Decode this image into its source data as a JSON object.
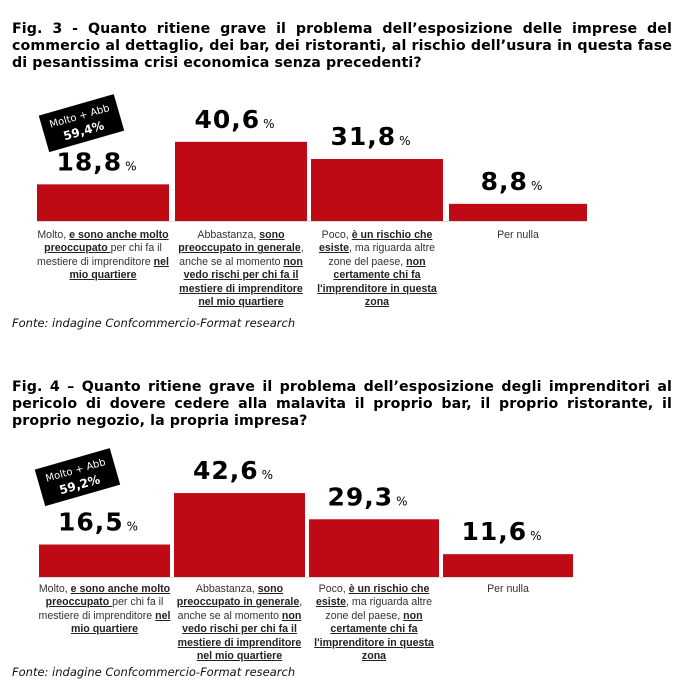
{
  "colors": {
    "bar": "#bf0a16",
    "badge": "#000000",
    "badge_text": "#ffffff"
  },
  "chart_data": [
    {
      "type": "bar",
      "title": "Fig. 3 - Quanto ritiene grave il problema dell’esposizione delle imprese del commercio al dettaglio, dei bar, dei ristoranti, al rischio dell’usura in questa fase di pesantissima crisi economica senza precedenti?",
      "unit": "%",
      "values": [
        18.8,
        40.6,
        31.8,
        8.8
      ],
      "value_labels": [
        "18,8",
        "40,6",
        "31,8",
        "8,8"
      ],
      "badge": {
        "line1": "Molto + Abb",
        "line2": "59,4%"
      },
      "categories": [
        [
          {
            "t": "Molto, ",
            "b": false
          },
          {
            "t": "e sono anche molto preoccupato ",
            "b": true
          },
          {
            "t": "per chi fa il mestiere di imprenditore ",
            "b": false
          },
          {
            "t": "nel mio quartiere",
            "b": true
          }
        ],
        [
          {
            "t": "Abbastanza, ",
            "b": false
          },
          {
            "t": "sono preoccupato in generale",
            "b": true
          },
          {
            "t": ", anche se al momento ",
            "b": false
          },
          {
            "t": "non vedo rischi per chi fa il mestiere di imprenditore nel mio quartiere",
            "b": true
          }
        ],
        [
          {
            "t": "Poco, ",
            "b": false
          },
          {
            "t": "è un rischio che esiste",
            "b": true
          },
          {
            "t": ", ma riguarda altre zone del paese, ",
            "b": false
          },
          {
            "t": "non certamente chi fa l'imprenditore in questa zona",
            "b": true
          }
        ],
        [
          {
            "t": "Per nulla",
            "b": false
          }
        ]
      ],
      "source": "Fonte: indagine Confcommercio-Format research"
    },
    {
      "type": "bar",
      "title": "Fig. 4 – Quanto ritiene grave il problema dell’esposizione degli imprenditori al pericolo di dovere cedere alla malavita il proprio bar, il proprio ristorante, il proprio negozio, la propria impresa?",
      "unit": "%",
      "values": [
        16.5,
        42.6,
        29.3,
        11.6
      ],
      "value_labels": [
        "16,5",
        "42,6",
        "29,3",
        "11,6"
      ],
      "badge": {
        "line1": "Molto + Abb",
        "line2": "59,2%"
      },
      "categories": [
        [
          {
            "t": "Molto, ",
            "b": false
          },
          {
            "t": "e sono anche molto preoccupato ",
            "b": true
          },
          {
            "t": "per chi fa il mestiere di imprenditore ",
            "b": false
          },
          {
            "t": "nel mio quartiere",
            "b": true
          }
        ],
        [
          {
            "t": "Abbastanza, ",
            "b": false
          },
          {
            "t": "sono preoccupato in generale",
            "b": true
          },
          {
            "t": ", anche se al momento ",
            "b": false
          },
          {
            "t": "non vedo rischi per chi fa il mestiere di imprenditore nel mio quartiere",
            "b": true
          }
        ],
        [
          {
            "t": "Poco, ",
            "b": false
          },
          {
            "t": "è un rischio che esiste",
            "b": true
          },
          {
            "t": ", ma riguarda altre zone del paese, ",
            "b": false
          },
          {
            "t": "non certamente chi fa l'imprenditore in questa zona",
            "b": true
          }
        ],
        [
          {
            "t": "Per nulla",
            "b": false
          }
        ]
      ],
      "source": "Fonte: indagine Confcommercio-Format research"
    }
  ]
}
